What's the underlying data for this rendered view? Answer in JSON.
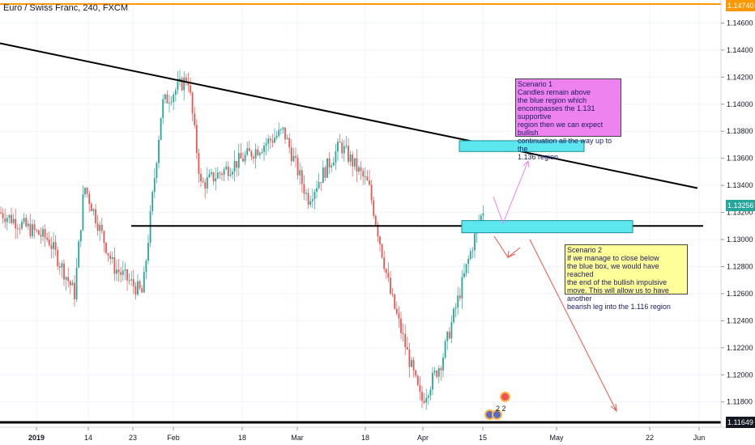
{
  "header": {
    "title": "Euro / Swiss Franc, 240, FXCM"
  },
  "price_tags": {
    "top": "1.14740",
    "current": "1.13256",
    "bottom": "1.11649"
  },
  "annotations": {
    "scenario1": "Scenario 1\nCandles remain above\nthe blue region which\nencompasses the 1.131 supportive\nregion then we can expect bullish\ncontinuation all the way up to the\n 1.136 region",
    "scenario2": "Scenario 2\nIf we manage to close below\nthe blue box, we would have reached\nthe end of the bullish impulsive\nmove. This will allow us to have another\nbearish leg into the 1.116 region"
  },
  "events": {
    "badge": "2 2"
  },
  "colors": {
    "up": "#26a69a",
    "down": "#ef5350",
    "zone": "#5ce7ef",
    "pink_arrow": "#ee82ee",
    "red_arrow": "#ef5350",
    "top_line": "#ff9800"
  },
  "chart_data": {
    "type": "candlestick",
    "title": "Euro / Swiss Franc, 240, FXCM",
    "ylim": [
      1.11649,
      1.1474
    ],
    "y_ticks": [
      1.146,
      1.144,
      1.142,
      1.14,
      1.138,
      1.136,
      1.134,
      1.132,
      1.13,
      1.128,
      1.126,
      1.124,
      1.122,
      1.12,
      1.118
    ],
    "y_tick_labels": [
      "1.14600",
      "1.14400",
      "1.14200",
      "1.14000",
      "1.13800",
      "1.13600",
      "1.13400",
      "1.13200",
      "1.13000",
      "1.12800",
      "1.12600",
      "1.12400",
      "1.12200",
      "1.12000",
      "1.11800"
    ],
    "x_ticks": [
      "2019",
      "14",
      "23",
      "Feb",
      "18",
      "Mar",
      "18",
      "Apr",
      "15",
      "May",
      "22",
      "Jun"
    ],
    "current_price": 1.13256,
    "path": [
      [
        "2019",
        1.132
      ],
      [
        "14",
        1.13
      ],
      [
        "14",
        1.126
      ],
      [
        "23",
        1.134
      ],
      [
        "23",
        1.128
      ],
      [
        "23",
        1.126
      ],
      [
        "Feb",
        1.14
      ],
      [
        "Feb",
        1.142
      ],
      [
        "18",
        1.134
      ],
      [
        "18",
        1.136
      ],
      [
        "Mar",
        1.138
      ],
      [
        "Mar",
        1.133
      ],
      [
        "18",
        1.137
      ],
      [
        "18",
        1.134
      ],
      [
        "Apr",
        1.126
      ],
      [
        "Apr",
        1.118
      ],
      [
        "Apr",
        1.121
      ],
      [
        "15",
        1.13
      ],
      [
        "15",
        1.1325
      ]
    ],
    "levels": [
      {
        "name": "support",
        "value": 1.131
      },
      {
        "name": "top",
        "value": 1.1474
      },
      {
        "name": "bottom",
        "value": 1.11649
      }
    ],
    "trendline": {
      "from": [
        "2019",
        1.1445
      ],
      "to": [
        "Jun",
        1.1338
      ]
    },
    "zones": [
      {
        "from": "15",
        "to": "May",
        "low": 1.1365,
        "high": 1.1373
      },
      {
        "from": "15",
        "to": "22",
        "low": 1.1305,
        "high": 1.1314
      }
    ]
  }
}
